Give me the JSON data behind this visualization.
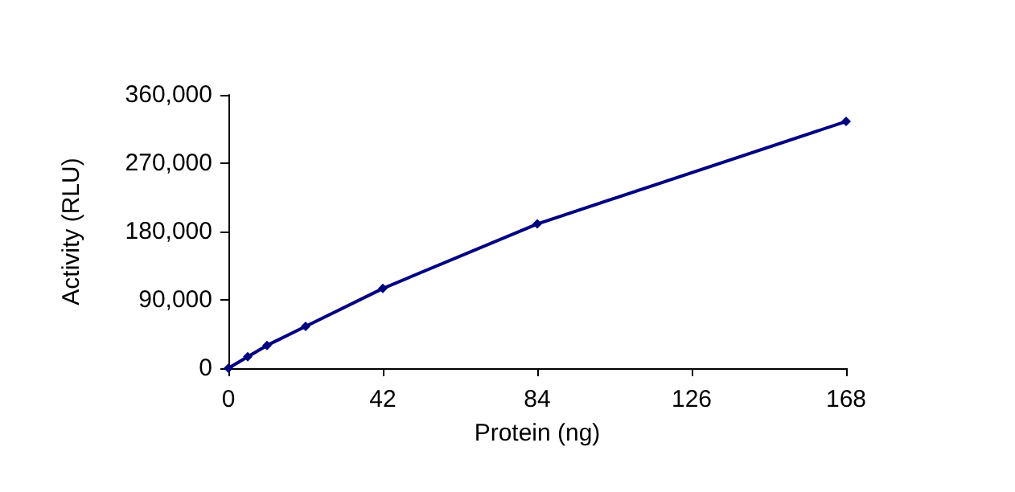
{
  "chart_data": {
    "type": "line",
    "xlabel": "Protein (ng)",
    "ylabel": "Activity (RLU)",
    "x": [
      0,
      5.25,
      10.5,
      21,
      42,
      84,
      168
    ],
    "series": [
      {
        "color": "#000080",
        "values": [
          0,
          15000,
          30000,
          55000,
          105000,
          190000,
          325000
        ]
      }
    ],
    "xlim": [
      0,
      168
    ],
    "xticks": [
      0,
      42,
      84,
      126,
      168
    ],
    "ylim": [
      0,
      360000
    ],
    "yticks": [
      0,
      {
        "value": 90000,
        "label": "90,000"
      },
      {
        "value": 180000,
        "label": "180,000"
      },
      {
        "value": 270000,
        "label": "270,000"
      },
      {
        "value": 360000,
        "label": "360,000"
      }
    ],
    "marker": "diamond",
    "line_style": "solid"
  }
}
